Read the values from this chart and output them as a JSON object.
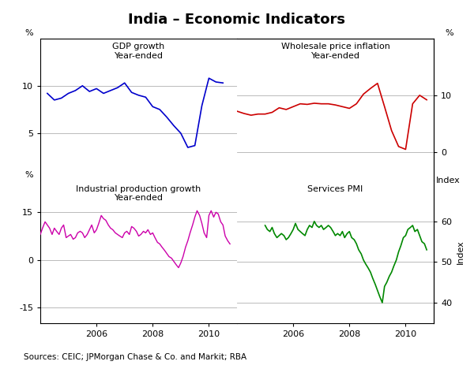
{
  "title": "India – Economic Indicators",
  "source_text": "Sources: CEIC; JPMorgan Chase & Co. and Markit; RBA",
  "colors": {
    "gdp": "#0000cc",
    "wholesale": "#cc0000",
    "industrial": "#cc00aa",
    "pmi": "#008800"
  },
  "gdp": {
    "x": [
      2004.25,
      2004.5,
      2004.75,
      2005.0,
      2005.25,
      2005.5,
      2005.75,
      2006.0,
      2006.25,
      2006.5,
      2006.75,
      2007.0,
      2007.25,
      2007.5,
      2007.75,
      2008.0,
      2008.25,
      2008.5,
      2008.75,
      2009.0,
      2009.25,
      2009.5,
      2009.75,
      2010.0,
      2010.25,
      2010.5
    ],
    "y": [
      9.2,
      8.5,
      8.7,
      9.2,
      9.5,
      10.0,
      9.4,
      9.7,
      9.2,
      9.5,
      9.8,
      10.3,
      9.3,
      9.0,
      8.8,
      7.8,
      7.5,
      6.7,
      5.8,
      5.0,
      3.5,
      3.7,
      7.9,
      10.8,
      10.4,
      10.3
    ]
  },
  "wholesale": {
    "x": [
      2004.0,
      2004.25,
      2004.5,
      2004.75,
      2005.0,
      2005.25,
      2005.5,
      2005.75,
      2006.0,
      2006.25,
      2006.5,
      2006.75,
      2007.0,
      2007.25,
      2007.5,
      2007.75,
      2008.0,
      2008.25,
      2008.5,
      2008.75,
      2009.0,
      2009.25,
      2009.5,
      2009.75,
      2010.0,
      2010.25,
      2010.5,
      2010.75
    ],
    "y": [
      7.2,
      6.8,
      6.5,
      6.7,
      6.7,
      7.0,
      7.8,
      7.5,
      8.0,
      8.5,
      8.4,
      8.6,
      8.5,
      8.5,
      8.3,
      8.0,
      7.7,
      8.5,
      10.2,
      11.2,
      12.1,
      8.0,
      3.8,
      1.0,
      0.5,
      8.5,
      10.0,
      9.2
    ]
  },
  "industrial": {
    "x": [
      2004.0,
      2004.08,
      2004.17,
      2004.25,
      2004.33,
      2004.42,
      2004.5,
      2004.58,
      2004.67,
      2004.75,
      2004.83,
      2004.92,
      2005.0,
      2005.08,
      2005.17,
      2005.25,
      2005.33,
      2005.42,
      2005.5,
      2005.58,
      2005.67,
      2005.75,
      2005.83,
      2005.92,
      2006.0,
      2006.08,
      2006.17,
      2006.25,
      2006.33,
      2006.42,
      2006.5,
      2006.58,
      2006.67,
      2006.75,
      2006.83,
      2006.92,
      2007.0,
      2007.08,
      2007.17,
      2007.25,
      2007.33,
      2007.42,
      2007.5,
      2007.58,
      2007.67,
      2007.75,
      2007.83,
      2007.92,
      2008.0,
      2008.08,
      2008.17,
      2008.25,
      2008.33,
      2008.42,
      2008.5,
      2008.58,
      2008.67,
      2008.75,
      2008.83,
      2008.92,
      2009.0,
      2009.08,
      2009.17,
      2009.25,
      2009.33,
      2009.42,
      2009.5,
      2009.58,
      2009.67,
      2009.75,
      2009.83,
      2009.92,
      2010.0,
      2010.08,
      2010.17,
      2010.25,
      2010.33,
      2010.42,
      2010.5,
      2010.58,
      2010.67,
      2010.75
    ],
    "y": [
      8.0,
      10.0,
      12.0,
      11.0,
      10.0,
      8.0,
      10.0,
      9.0,
      8.0,
      10.0,
      11.0,
      7.0,
      7.5,
      8.0,
      6.5,
      7.0,
      8.5,
      9.0,
      8.5,
      7.0,
      8.0,
      9.5,
      11.0,
      8.5,
      9.5,
      11.5,
      14.0,
      13.0,
      12.5,
      11.0,
      10.0,
      9.5,
      8.5,
      8.0,
      7.5,
      7.0,
      8.5,
      9.0,
      8.0,
      10.5,
      10.0,
      9.0,
      7.5,
      8.0,
      9.0,
      8.5,
      9.5,
      8.0,
      8.5,
      7.0,
      5.5,
      5.0,
      4.0,
      3.0,
      2.0,
      1.0,
      0.5,
      -0.5,
      -1.5,
      -2.5,
      -1.0,
      1.0,
      4.0,
      6.0,
      8.5,
      11.0,
      13.5,
      15.5,
      14.0,
      11.5,
      8.5,
      7.0,
      14.0,
      15.5,
      13.5,
      15.0,
      14.5,
      12.0,
      11.0,
      7.5,
      6.0,
      5.0
    ]
  },
  "pmi": {
    "x": [
      2005.0,
      2005.08,
      2005.17,
      2005.25,
      2005.33,
      2005.42,
      2005.5,
      2005.58,
      2005.67,
      2005.75,
      2005.83,
      2005.92,
      2006.0,
      2006.08,
      2006.17,
      2006.25,
      2006.33,
      2006.42,
      2006.5,
      2006.58,
      2006.67,
      2006.75,
      2006.83,
      2006.92,
      2007.0,
      2007.08,
      2007.17,
      2007.25,
      2007.33,
      2007.42,
      2007.5,
      2007.58,
      2007.67,
      2007.75,
      2007.83,
      2007.92,
      2008.0,
      2008.08,
      2008.17,
      2008.25,
      2008.33,
      2008.42,
      2008.5,
      2008.58,
      2008.67,
      2008.75,
      2008.83,
      2008.92,
      2009.0,
      2009.08,
      2009.17,
      2009.25,
      2009.33,
      2009.42,
      2009.5,
      2009.58,
      2009.67,
      2009.75,
      2009.83,
      2009.92,
      2010.0,
      2010.08,
      2010.17,
      2010.25,
      2010.33,
      2010.42,
      2010.5,
      2010.58,
      2010.67,
      2010.75
    ],
    "y": [
      59.0,
      58.0,
      57.5,
      58.5,
      57.0,
      56.0,
      56.5,
      57.0,
      56.5,
      55.5,
      56.0,
      57.0,
      58.0,
      59.5,
      58.0,
      57.5,
      57.0,
      56.5,
      58.0,
      59.0,
      58.5,
      60.0,
      59.0,
      58.5,
      59.0,
      58.0,
      58.5,
      59.0,
      58.5,
      57.5,
      56.5,
      57.0,
      56.5,
      57.5,
      56.0,
      57.0,
      57.5,
      56.0,
      55.5,
      54.5,
      53.0,
      52.0,
      50.5,
      49.5,
      48.5,
      47.5,
      46.0,
      44.5,
      43.0,
      41.5,
      40.0,
      44.0,
      45.0,
      46.5,
      47.5,
      49.0,
      50.5,
      52.5,
      54.0,
      56.0,
      56.5,
      58.0,
      58.5,
      59.0,
      57.5,
      58.0,
      56.5,
      55.0,
      54.5,
      53.0
    ]
  },
  "xlim": [
    2004.0,
    2011.0
  ],
  "xticks": [
    2006,
    2008,
    2010
  ],
  "background_color": "#ffffff",
  "grid_color": "#b0b0b0",
  "border_color": "#000000"
}
